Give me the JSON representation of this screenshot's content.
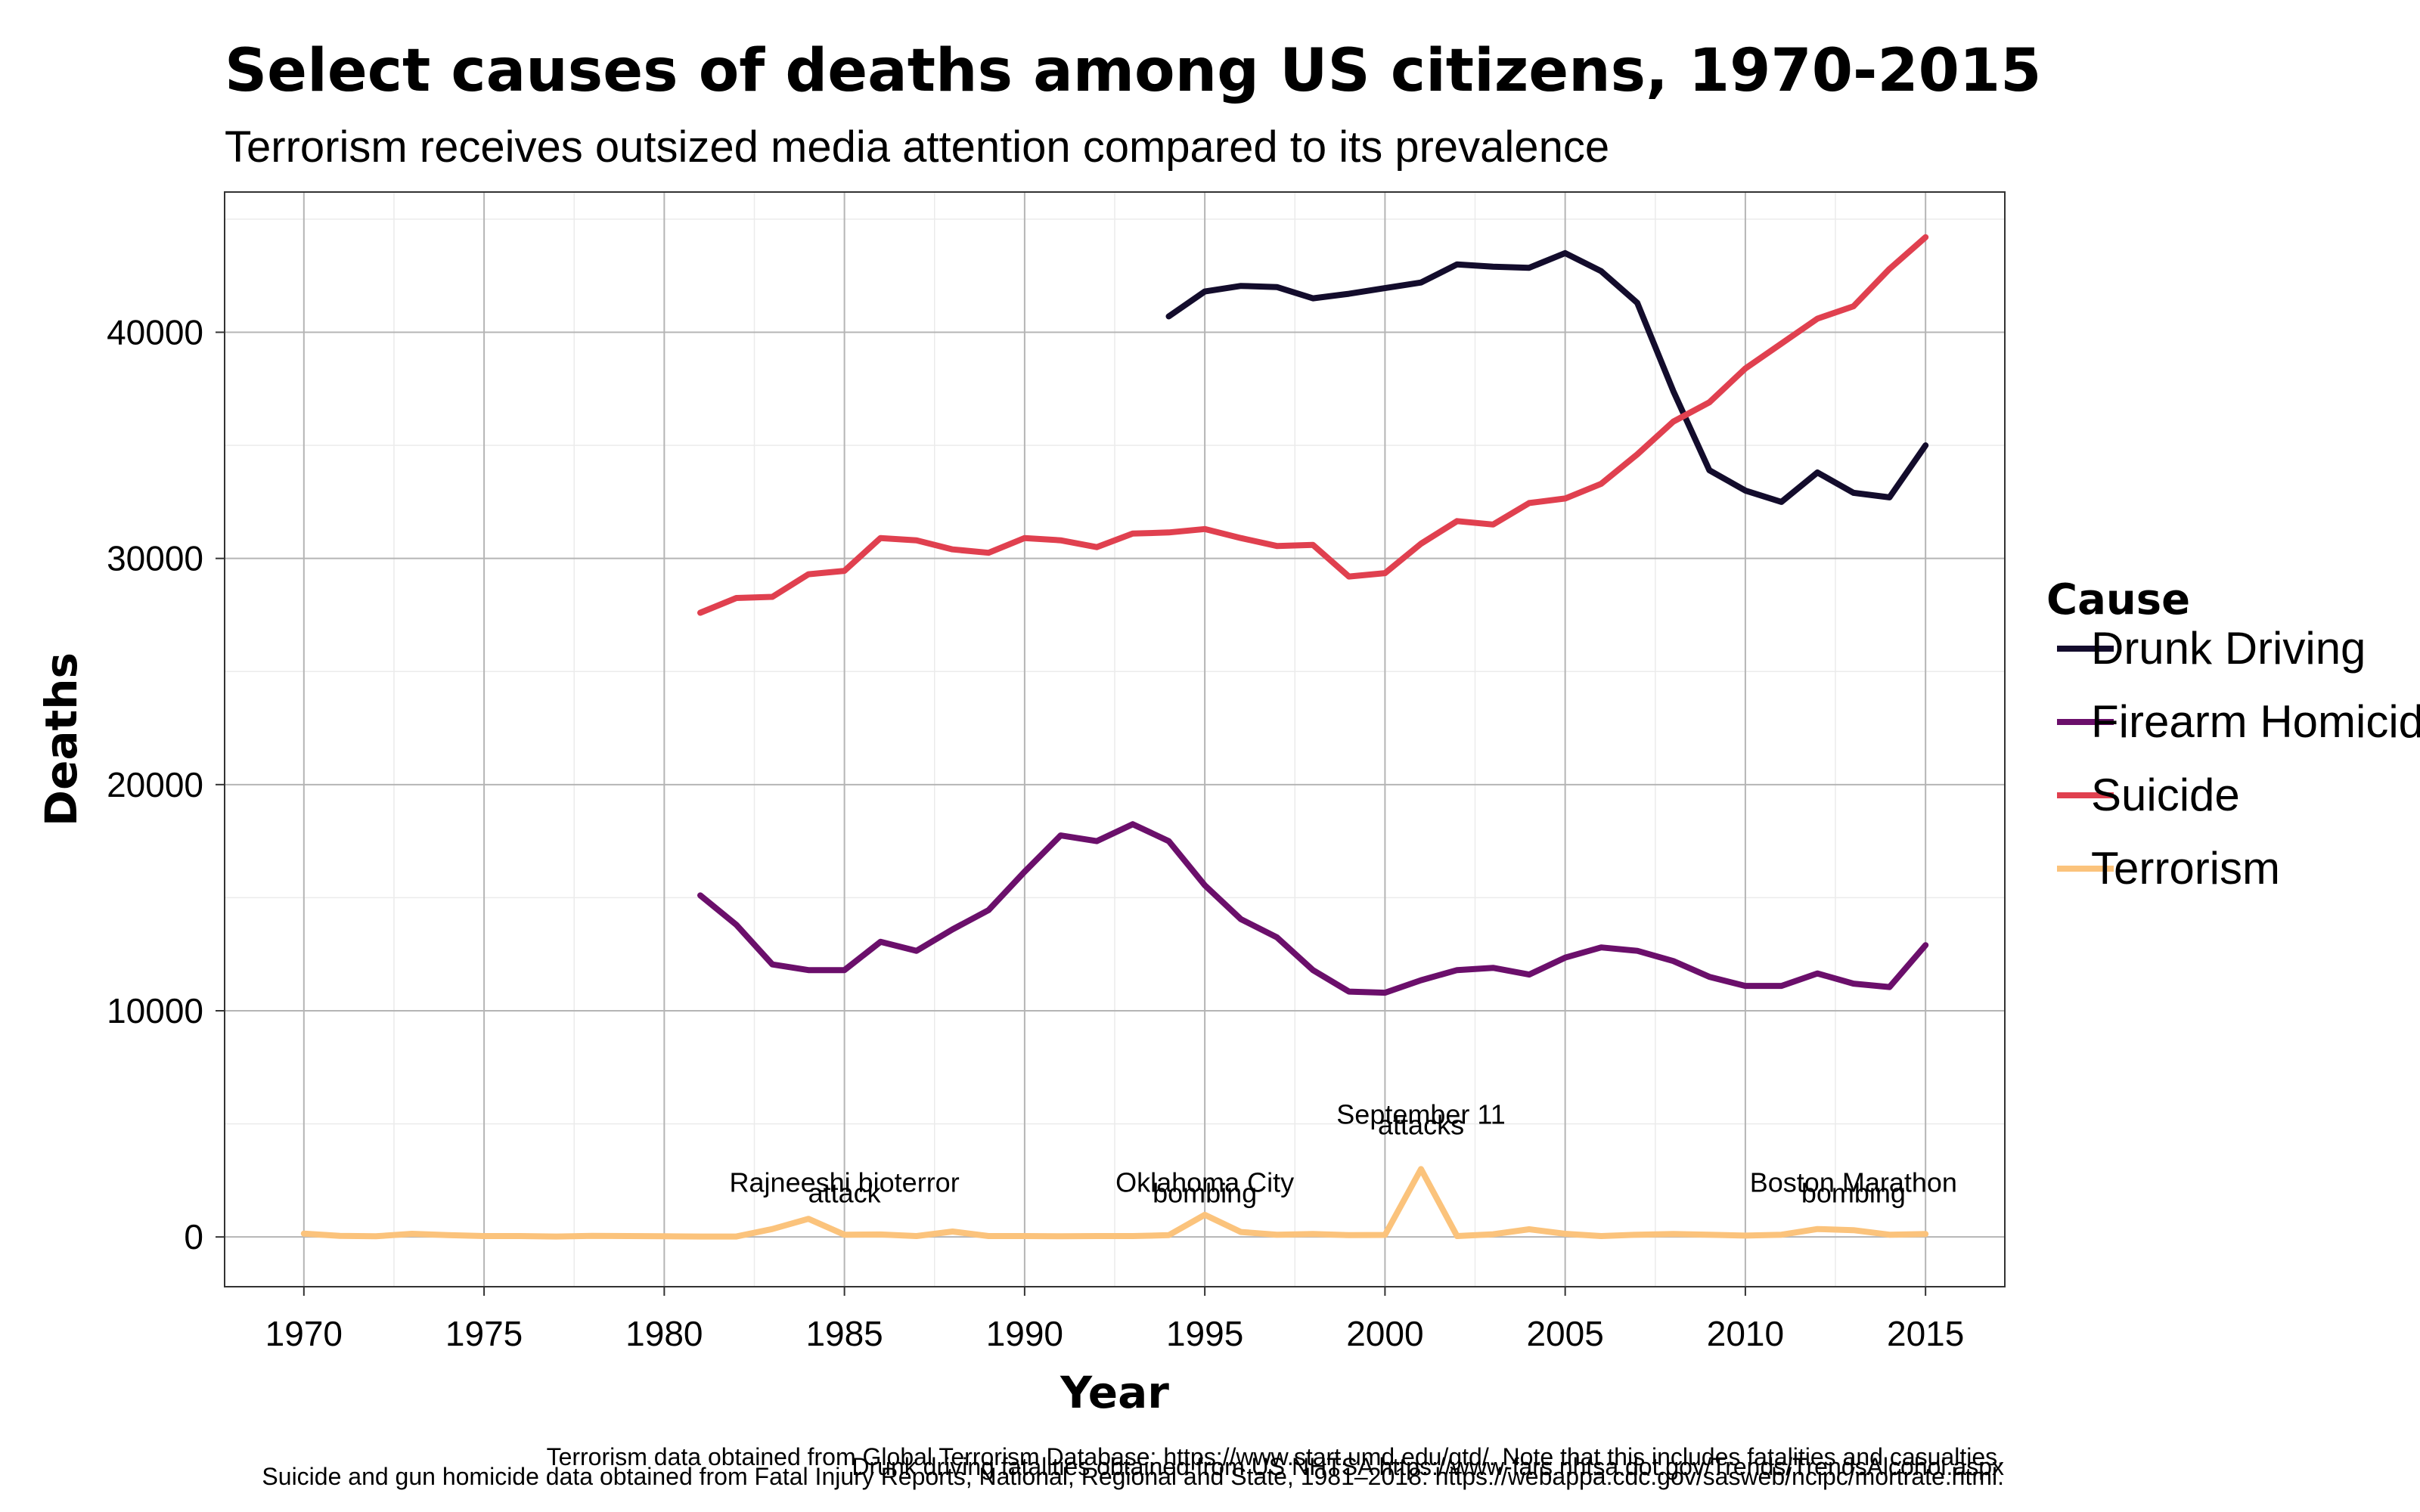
{
  "chart_data": {
    "type": "line",
    "title": "Select causes of deaths among US citizens, 1970-2015",
    "subtitle": "Terrorism receives outsized media attention compared to its prevalence",
    "xlabel": "Year",
    "ylabel": "Deaths",
    "xlim": [
      1967.8,
      2017.2
    ],
    "ylim": [
      -2200,
      46200
    ],
    "x_ticks": [
      1970,
      1975,
      1980,
      1985,
      1990,
      1995,
      2000,
      2005,
      2010,
      2015
    ],
    "y_ticks": [
      0,
      10000,
      20000,
      30000,
      40000
    ],
    "grid": true,
    "legend": {
      "title": "Cause",
      "position": "right",
      "entries": [
        "Drunk Driving",
        "Firearm Homicide",
        "Suicide",
        "Terrorism"
      ]
    },
    "series": [
      {
        "name": "Drunk Driving",
        "color": "#130c2c",
        "x": [
          1994,
          1995,
          1996,
          1997,
          1998,
          1999,
          2000,
          2001,
          2002,
          2003,
          2004,
          2005,
          2006,
          2007,
          2008,
          2009,
          2010,
          2011,
          2012,
          2013,
          2014,
          2015
        ],
        "y": [
          40700,
          41800,
          42050,
          42000,
          41500,
          41700,
          41950,
          42200,
          43000,
          42900,
          42850,
          43500,
          42700,
          41300,
          37400,
          33900,
          33000,
          32500,
          33800,
          32900,
          32700,
          35000
        ]
      },
      {
        "name": "Firearm Homicide",
        "color": "#6b0f6b",
        "x": [
          1981,
          1982,
          1983,
          1984,
          1985,
          1986,
          1987,
          1988,
          1989,
          1990,
          1991,
          1992,
          1993,
          1994,
          1995,
          1996,
          1997,
          1998,
          1999,
          2000,
          2001,
          2002,
          2003,
          2004,
          2005,
          2006,
          2007,
          2008,
          2009,
          2010,
          2011,
          2012,
          2013,
          2014,
          2015
        ],
        "y": [
          15100,
          13800,
          12050,
          11800,
          11800,
          13050,
          12650,
          13600,
          14450,
          16150,
          17750,
          17500,
          18250,
          17500,
          15550,
          14050,
          13250,
          11800,
          10850,
          10800,
          11350,
          11800,
          11900,
          11600,
          12350,
          12800,
          12650,
          12200,
          11500,
          11100,
          11100,
          11650,
          11200,
          11050,
          12900
        ]
      },
      {
        "name": "Suicide",
        "color": "#e0404f",
        "x": [
          1981,
          1982,
          1983,
          1984,
          1985,
          1986,
          1987,
          1988,
          1989,
          1990,
          1991,
          1992,
          1993,
          1994,
          1995,
          1996,
          1997,
          1998,
          1999,
          2000,
          2001,
          2002,
          2003,
          2004,
          2005,
          2006,
          2007,
          2008,
          2009,
          2010,
          2011,
          2012,
          2013,
          2014,
          2015
        ],
        "y": [
          27600,
          28250,
          28300,
          29300,
          29450,
          30900,
          30800,
          30400,
          30250,
          30900,
          30800,
          30500,
          31100,
          31150,
          31300,
          30900,
          30550,
          30600,
          29200,
          29350,
          30650,
          31650,
          31500,
          32450,
          32650,
          33300,
          34600,
          36050,
          36900,
          38400,
          39500,
          40600,
          41150,
          42800,
          44200
        ]
      },
      {
        "name": "Terrorism",
        "color": "#fbc37c",
        "x": [
          1970,
          1971,
          1972,
          1973,
          1974,
          1975,
          1976,
          1977,
          1978,
          1979,
          1980,
          1981,
          1982,
          1983,
          1984,
          1985,
          1986,
          1987,
          1988,
          1989,
          1990,
          1991,
          1992,
          1993,
          1994,
          1995,
          1996,
          1997,
          1998,
          1999,
          2000,
          2001,
          2002,
          2003,
          2004,
          2005,
          2006,
          2007,
          2008,
          2009,
          2010,
          2011,
          2012,
          2013,
          2014,
          2015
        ],
        "y": [
          150,
          50,
          30,
          140,
          80,
          40,
          40,
          20,
          50,
          40,
          30,
          20,
          20,
          350,
          800,
          100,
          110,
          40,
          240,
          40,
          40,
          30,
          40,
          40,
          80,
          980,
          220,
          100,
          130,
          80,
          90,
          3000,
          40,
          120,
          340,
          140,
          40,
          100,
          130,
          100,
          60,
          100,
          350,
          300,
          100,
          130
        ]
      }
    ],
    "annotations": [
      {
        "x": 1985,
        "y": 2000,
        "lines": [
          "Rajneeshi bioterror",
          "attack"
        ]
      },
      {
        "x": 1995,
        "y": 2000,
        "lines": [
          "Oklahoma City",
          "bombing"
        ]
      },
      {
        "x": 2001,
        "y": 5000,
        "lines": [
          "September 11",
          "attacks"
        ]
      },
      {
        "x": 2013,
        "y": 2000,
        "lines": [
          "Boston Marathon",
          "bombing"
        ]
      }
    ],
    "captions": [
      "Terrorism data obtained from Global Terrorism Database: https://www.start.umd.edu/gtd/. Note that this includes fatalities and casualties.",
      "Drunk driving fatalities obtained from US NHTSA https://www-fars.nhtsa.dot.gov/Trends/TrendsAlcohol.aspx",
      "Suicide and gun homicide data obtained from Fatal Injury Reports, National, Regional and State, 1981–2018: https://webappa.cdc.gov/sasweb/ncipc/mortrate.html."
    ]
  }
}
